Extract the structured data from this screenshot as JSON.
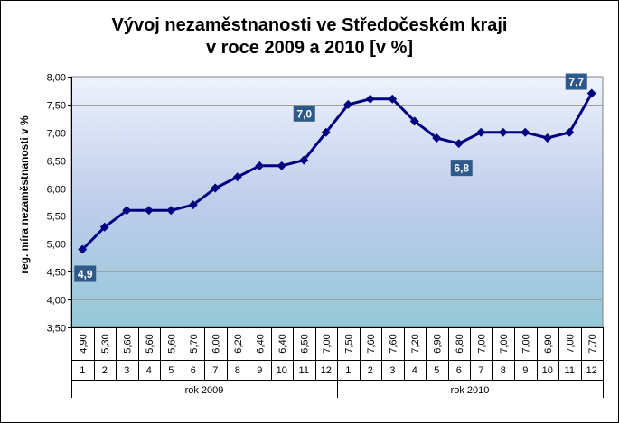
{
  "chart_data": {
    "type": "line",
    "title_line1": "Vývoj nezaměstnanosti  ve Středočeském  kraji",
    "title_line2": "v roce  2009 a 2010 [v %]",
    "ylabel": "reg. míra nezaměstnanosti v %",
    "ylim": [
      3.5,
      8.0
    ],
    "y_ticks": [
      "3,50",
      "4,00",
      "4,50",
      "5,00",
      "5,50",
      "6,00",
      "6,50",
      "7,00",
      "7,50",
      "8,00"
    ],
    "grid": true,
    "line_color": "#000080",
    "months": [
      "1",
      "2",
      "3",
      "4",
      "5",
      "6",
      "7",
      "8",
      "9",
      "10",
      "11",
      "12",
      "1",
      "2",
      "3",
      "4",
      "5",
      "6",
      "7",
      "8",
      "9",
      "10",
      "11",
      "12"
    ],
    "value_labels": [
      "4,90",
      "5,30",
      "5,60",
      "5,60",
      "5,60",
      "5,70",
      "6,00",
      "6,20",
      "6,40",
      "6,40",
      "6,50",
      "7,00",
      "7,50",
      "7,60",
      "7,60",
      "7,20",
      "6,90",
      "6,80",
      "7,00",
      "7,00",
      "7,00",
      "6,90",
      "7,00",
      "7,70"
    ],
    "values": [
      4.9,
      5.3,
      5.6,
      5.6,
      5.6,
      5.7,
      6.0,
      6.2,
      6.4,
      6.4,
      6.5,
      7.0,
      7.5,
      7.6,
      7.6,
      7.2,
      6.9,
      6.8,
      7.0,
      7.0,
      7.0,
      6.9,
      7.0,
      7.7
    ],
    "groups": [
      {
        "label": "rok 2009",
        "start": 0,
        "count": 12
      },
      {
        "label": "rok 2010",
        "start": 12,
        "count": 12
      }
    ],
    "callouts": [
      {
        "index": 0,
        "text": "4,9",
        "placement": "below"
      },
      {
        "index": 11,
        "text": "7,0",
        "placement": "left"
      },
      {
        "index": 17,
        "text": "6,8",
        "placement": "below"
      },
      {
        "index": 23,
        "text": "7,7",
        "placement": "above-left"
      }
    ],
    "callout_color": "#2E5A8A"
  }
}
